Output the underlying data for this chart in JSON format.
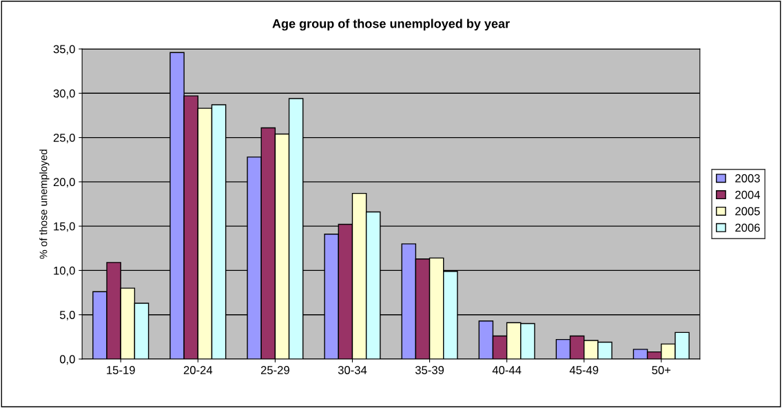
{
  "chart_data": {
    "type": "bar",
    "title": "Age group of those unemployed by year",
    "ylabel": "% of those unemployed",
    "categories": [
      "15-19",
      "20-24",
      "25-29",
      "30-34",
      "35-39",
      "40-44",
      "45-49",
      "50+"
    ],
    "series": [
      {
        "name": "2003",
        "color": "#9999ff",
        "values": [
          7.6,
          34.6,
          22.8,
          14.1,
          13.0,
          4.3,
          2.2,
          1.1
        ]
      },
      {
        "name": "2004",
        "color": "#993366",
        "values": [
          10.9,
          29.7,
          26.1,
          15.2,
          11.3,
          2.6,
          2.6,
          0.8
        ]
      },
      {
        "name": "2005",
        "color": "#ffffcc",
        "values": [
          8.0,
          28.3,
          25.4,
          18.7,
          11.4,
          4.1,
          2.1,
          1.7
        ]
      },
      {
        "name": "2006",
        "color": "#ccffff",
        "values": [
          6.3,
          28.7,
          29.4,
          16.6,
          9.9,
          4.0,
          1.9,
          3.0
        ]
      }
    ],
    "ylim": [
      0,
      35
    ],
    "yticks": [
      {
        "value": 0,
        "label": "0,0"
      },
      {
        "value": 5,
        "label": "5,0"
      },
      {
        "value": 10,
        "label": "10,0"
      },
      {
        "value": 15,
        "label": "15,0"
      },
      {
        "value": 20,
        "label": "20,0"
      },
      {
        "value": 25,
        "label": "25,0"
      },
      {
        "value": 30,
        "label": "30,0"
      },
      {
        "value": 35,
        "label": "35,0"
      }
    ],
    "grid": "y",
    "legend": "right"
  }
}
